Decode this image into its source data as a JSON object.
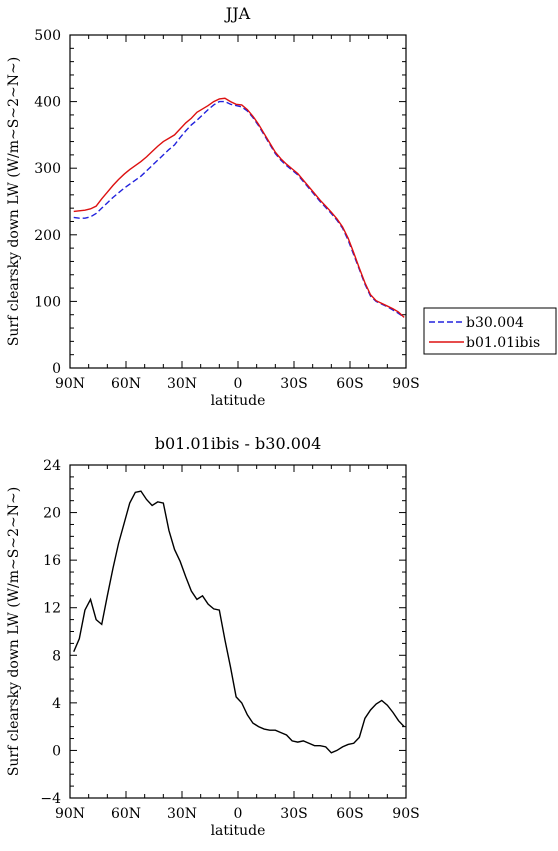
{
  "chart_data": [
    {
      "type": "line",
      "title": "JJA",
      "xlabel": "latitude",
      "ylabel": "Surf clearsky down LW (W/m~S~2~N~)",
      "xlim": [
        90,
        -90
      ],
      "ylim": [
        0,
        500
      ],
      "x_tick_values": [
        90,
        60,
        30,
        0,
        -30,
        -60,
        -90
      ],
      "x_tick_labels": [
        "90N",
        "60N",
        "30N",
        "0",
        "30S",
        "60S",
        "90S"
      ],
      "y_tick_values": [
        0,
        100,
        200,
        300,
        400,
        500
      ],
      "y_tick_labels": [
        "0",
        "100",
        "200",
        "300",
        "400",
        "500"
      ],
      "legend_position": "right",
      "series": [
        {
          "name": "b30.004",
          "color": "#2222dd",
          "dash": "dashed",
          "x": [
            88,
            85,
            82,
            79,
            76,
            73,
            70,
            67,
            64,
            61,
            58,
            55,
            52,
            49,
            46,
            43,
            40,
            37,
            34,
            31,
            28,
            25,
            22,
            19,
            16,
            13,
            10,
            7,
            4,
            1,
            -2,
            -5,
            -8,
            -11,
            -14,
            -17,
            -20,
            -23,
            -26,
            -29,
            -32,
            -35,
            -38,
            -41,
            -44,
            -47,
            -50,
            -53,
            -56,
            -59,
            -62,
            -65,
            -68,
            -71,
            -74,
            -77,
            -80,
            -83,
            -86,
            -89
          ],
          "y": [
            226,
            225,
            225,
            227,
            232,
            240,
            248,
            256,
            263,
            270,
            276,
            282,
            288,
            296,
            304,
            312,
            320,
            328,
            335,
            346,
            356,
            365,
            372,
            380,
            388,
            395,
            400,
            400,
            396,
            394,
            392,
            386,
            376,
            364,
            350,
            336,
            322,
            312,
            304,
            297,
            290,
            280,
            270,
            260,
            250,
            241,
            232,
            222,
            210,
            192,
            170,
            148,
            126,
            108,
            100,
            96,
            92,
            87,
            82,
            76
          ]
        },
        {
          "name": "b01.01ibis",
          "color": "#dd1111",
          "dash": "solid",
          "x": [
            88,
            85,
            82,
            79,
            76,
            73,
            70,
            67,
            64,
            61,
            58,
            55,
            52,
            49,
            46,
            43,
            40,
            37,
            34,
            31,
            28,
            25,
            22,
            19,
            16,
            13,
            10,
            7,
            4,
            1,
            -2,
            -5,
            -8,
            -11,
            -14,
            -17,
            -20,
            -23,
            -26,
            -29,
            -32,
            -35,
            -38,
            -41,
            -44,
            -47,
            -50,
            -53,
            -56,
            -59,
            -62,
            -65,
            -68,
            -71,
            -74,
            -77,
            -80,
            -83,
            -86,
            -89
          ],
          "y": [
            235,
            236,
            237,
            239,
            243,
            254,
            264,
            274,
            283,
            291,
            298,
            304,
            310,
            317,
            325,
            333,
            340,
            345,
            350,
            359,
            368,
            375,
            384,
            389,
            394,
            400,
            404,
            405,
            400,
            396,
            395,
            388,
            378,
            366,
            352,
            338,
            324,
            314,
            306,
            299,
            292,
            282,
            272,
            262,
            252,
            243,
            234,
            224,
            212,
            195,
            173,
            150,
            128,
            110,
            101,
            97,
            93,
            89,
            84,
            76
          ]
        }
      ]
    },
    {
      "type": "line",
      "title": "b01.01ibis - b30.004",
      "xlabel": "latitude",
      "ylabel": "Surf clearsky down LW (W/m~S~2~N~)",
      "xlim": [
        90,
        -90
      ],
      "ylim": [
        -4,
        24
      ],
      "x_tick_values": [
        90,
        60,
        30,
        0,
        -30,
        -60,
        -90
      ],
      "x_tick_labels": [
        "90N",
        "60N",
        "30N",
        "0",
        "30S",
        "60S",
        "90S"
      ],
      "y_tick_values": [
        -4,
        0,
        4,
        8,
        12,
        16,
        20,
        24
      ],
      "y_tick_labels": [
        "−4",
        "0",
        "4",
        "8",
        "12",
        "16",
        "20",
        "24"
      ],
      "series": [
        {
          "color": "#000000",
          "dash": "solid",
          "x": [
            88,
            85,
            82,
            79,
            76,
            73,
            70,
            67,
            64,
            61,
            58,
            55,
            52,
            49,
            46,
            43,
            40,
            37,
            34,
            31,
            28,
            25,
            22,
            19,
            16,
            13,
            10,
            7,
            4,
            1,
            -2,
            -5,
            -8,
            -11,
            -14,
            -17,
            -20,
            -23,
            -26,
            -29,
            -32,
            -35,
            -38,
            -41,
            -44,
            -47,
            -50,
            -53,
            -56,
            -59,
            -62,
            -65,
            -68,
            -71,
            -74,
            -77,
            -80,
            -83,
            -86,
            -89
          ],
          "y": [
            8.3,
            9.4,
            11.8,
            12.7,
            11.0,
            10.6,
            13.0,
            15.3,
            17.4,
            19.1,
            20.8,
            21.7,
            21.8,
            21.1,
            20.6,
            20.9,
            20.8,
            18.5,
            16.9,
            15.9,
            14.6,
            13.4,
            12.7,
            13.0,
            12.3,
            11.9,
            11.8,
            9.3,
            7.0,
            4.5,
            4.0,
            3.0,
            2.3,
            2.0,
            1.8,
            1.7,
            1.7,
            1.5,
            1.3,
            0.8,
            0.7,
            0.8,
            0.6,
            0.4,
            0.4,
            0.3,
            -0.2,
            0.0,
            0.3,
            0.5,
            0.6,
            1.1,
            2.7,
            3.4,
            3.9,
            4.2,
            3.8,
            3.2,
            2.5,
            2.0
          ]
        }
      ]
    }
  ]
}
